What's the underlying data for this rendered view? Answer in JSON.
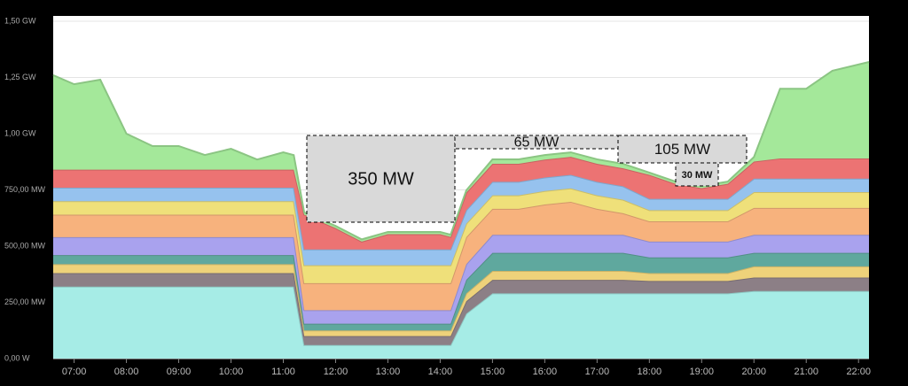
{
  "chart_data": {
    "type": "stacked-area",
    "x": [
      6.6,
      7.0,
      7.5,
      8.0,
      8.5,
      9.0,
      9.5,
      10.0,
      10.5,
      11.0,
      11.2,
      11.4,
      12.0,
      12.5,
      13.0,
      13.5,
      14.0,
      14.2,
      14.5,
      15.0,
      15.5,
      16.0,
      16.5,
      17.0,
      17.5,
      18.0,
      18.5,
      19.0,
      19.5,
      20.0,
      20.5,
      21.0,
      21.5,
      22.2
    ],
    "xlim": [
      6.6,
      22.2
    ],
    "xticks": [
      {
        "value": 7,
        "label": "07:00"
      },
      {
        "value": 8,
        "label": "08:00"
      },
      {
        "value": 9,
        "label": "09:00"
      },
      {
        "value": 10,
        "label": "10:00"
      },
      {
        "value": 11,
        "label": "11:00"
      },
      {
        "value": 12,
        "label": "12:00"
      },
      {
        "value": 13,
        "label": "13:00"
      },
      {
        "value": 14,
        "label": "14:00"
      },
      {
        "value": 15,
        "label": "15:00"
      },
      {
        "value": 16,
        "label": "16:00"
      },
      {
        "value": 17,
        "label": "17:00"
      },
      {
        "value": 18,
        "label": "18:00"
      },
      {
        "value": 19,
        "label": "19:00"
      },
      {
        "value": 20,
        "label": "20:00"
      },
      {
        "value": 21,
        "label": "21:00"
      },
      {
        "value": 22,
        "label": "22:00"
      }
    ],
    "ylim": [
      0,
      1500
    ],
    "yticks": [
      {
        "value": 0,
        "label": "0,00 W"
      },
      {
        "value": 250,
        "label": "250,00 MW"
      },
      {
        "value": 500,
        "label": "500,00 MW"
      },
      {
        "value": 750,
        "label": "750,00 MW"
      },
      {
        "value": 1000,
        "label": "1,00 GW"
      },
      {
        "value": 1250,
        "label": "1,25 GW"
      },
      {
        "value": 1500,
        "label": "1,50 GW"
      }
    ],
    "grid": true,
    "series": [
      {
        "color": "#a6ece6",
        "values": [
          320,
          320,
          320,
          320,
          320,
          320,
          320,
          320,
          320,
          320,
          320,
          60,
          60,
          60,
          60,
          60,
          60,
          60,
          200,
          290,
          290,
          290,
          290,
          290,
          290,
          290,
          290,
          290,
          290,
          300,
          300,
          300,
          300,
          300
        ]
      },
      {
        "color": "#8c7f86",
        "values": [
          60,
          60,
          60,
          60,
          60,
          60,
          60,
          60,
          60,
          60,
          60,
          40,
          40,
          40,
          40,
          40,
          40,
          40,
          55,
          60,
          60,
          60,
          60,
          60,
          60,
          55,
          55,
          55,
          55,
          60,
          60,
          60,
          60,
          60
        ]
      },
      {
        "color": "#eed27a",
        "values": [
          40,
          40,
          40,
          40,
          40,
          40,
          40,
          40,
          40,
          40,
          40,
          25,
          25,
          25,
          25,
          25,
          25,
          25,
          35,
          40,
          40,
          40,
          40,
          40,
          40,
          35,
          35,
          35,
          35,
          50,
          50,
          50,
          50,
          50
        ]
      },
      {
        "color": "#5fa89e",
        "values": [
          40,
          40,
          40,
          40,
          40,
          40,
          40,
          40,
          40,
          40,
          40,
          30,
          30,
          30,
          30,
          30,
          30,
          30,
          60,
          80,
          80,
          80,
          80,
          80,
          80,
          70,
          70,
          70,
          70,
          60,
          60,
          60,
          60,
          60
        ]
      },
      {
        "color": "#a9a2ee",
        "values": [
          80,
          80,
          80,
          80,
          80,
          80,
          80,
          80,
          80,
          80,
          80,
          60,
          60,
          60,
          60,
          60,
          60,
          60,
          70,
          80,
          80,
          80,
          80,
          80,
          80,
          70,
          70,
          70,
          70,
          80,
          80,
          80,
          80,
          80
        ]
      },
      {
        "color": "#f7b27d",
        "values": [
          100,
          100,
          100,
          100,
          100,
          100,
          100,
          100,
          100,
          100,
          100,
          120,
          120,
          120,
          120,
          120,
          120,
          120,
          120,
          116,
          116,
          135,
          147,
          116,
          96,
          90,
          90,
          90,
          90,
          120,
          120,
          120,
          120,
          120
        ]
      },
      {
        "color": "#efe07a",
        "values": [
          60,
          60,
          60,
          60,
          60,
          60,
          60,
          60,
          60,
          60,
          60,
          80,
          80,
          80,
          80,
          80,
          80,
          80,
          60,
          60,
          60,
          60,
          60,
          60,
          60,
          50,
          50,
          50,
          50,
          70,
          70,
          70,
          70,
          70
        ]
      },
      {
        "color": "#96c2ee",
        "values": [
          60,
          60,
          60,
          60,
          60,
          60,
          60,
          60,
          60,
          60,
          60,
          70,
          70,
          70,
          70,
          70,
          70,
          70,
          60,
          60,
          60,
          60,
          60,
          60,
          60,
          50,
          50,
          50,
          50,
          60,
          60,
          60,
          60,
          60
        ]
      },
      {
        "color": "#ec7373",
        "values": [
          80,
          80,
          80,
          80,
          80,
          80,
          80,
          80,
          80,
          80,
          80,
          155,
          95,
          35,
          68,
          68,
          68,
          56,
          78,
          80,
          80,
          80,
          80,
          80,
          80,
          107,
          67,
          48,
          67,
          76,
          90,
          90,
          90,
          90
        ]
      },
      {
        "color": "#a4e89a",
        "values": [
          420,
          380,
          400,
          160,
          105,
          105,
          65,
          93,
          45,
          77,
          65,
          10,
          10,
          10,
          10,
          10,
          10,
          10,
          10,
          20,
          20,
          20,
          20,
          20,
          20,
          10,
          10,
          10,
          10,
          20,
          310,
          310,
          390,
          429
        ]
      }
    ],
    "annotations": [
      "350 MW",
      "65 MW",
      "105 MW",
      "30 MW"
    ]
  }
}
